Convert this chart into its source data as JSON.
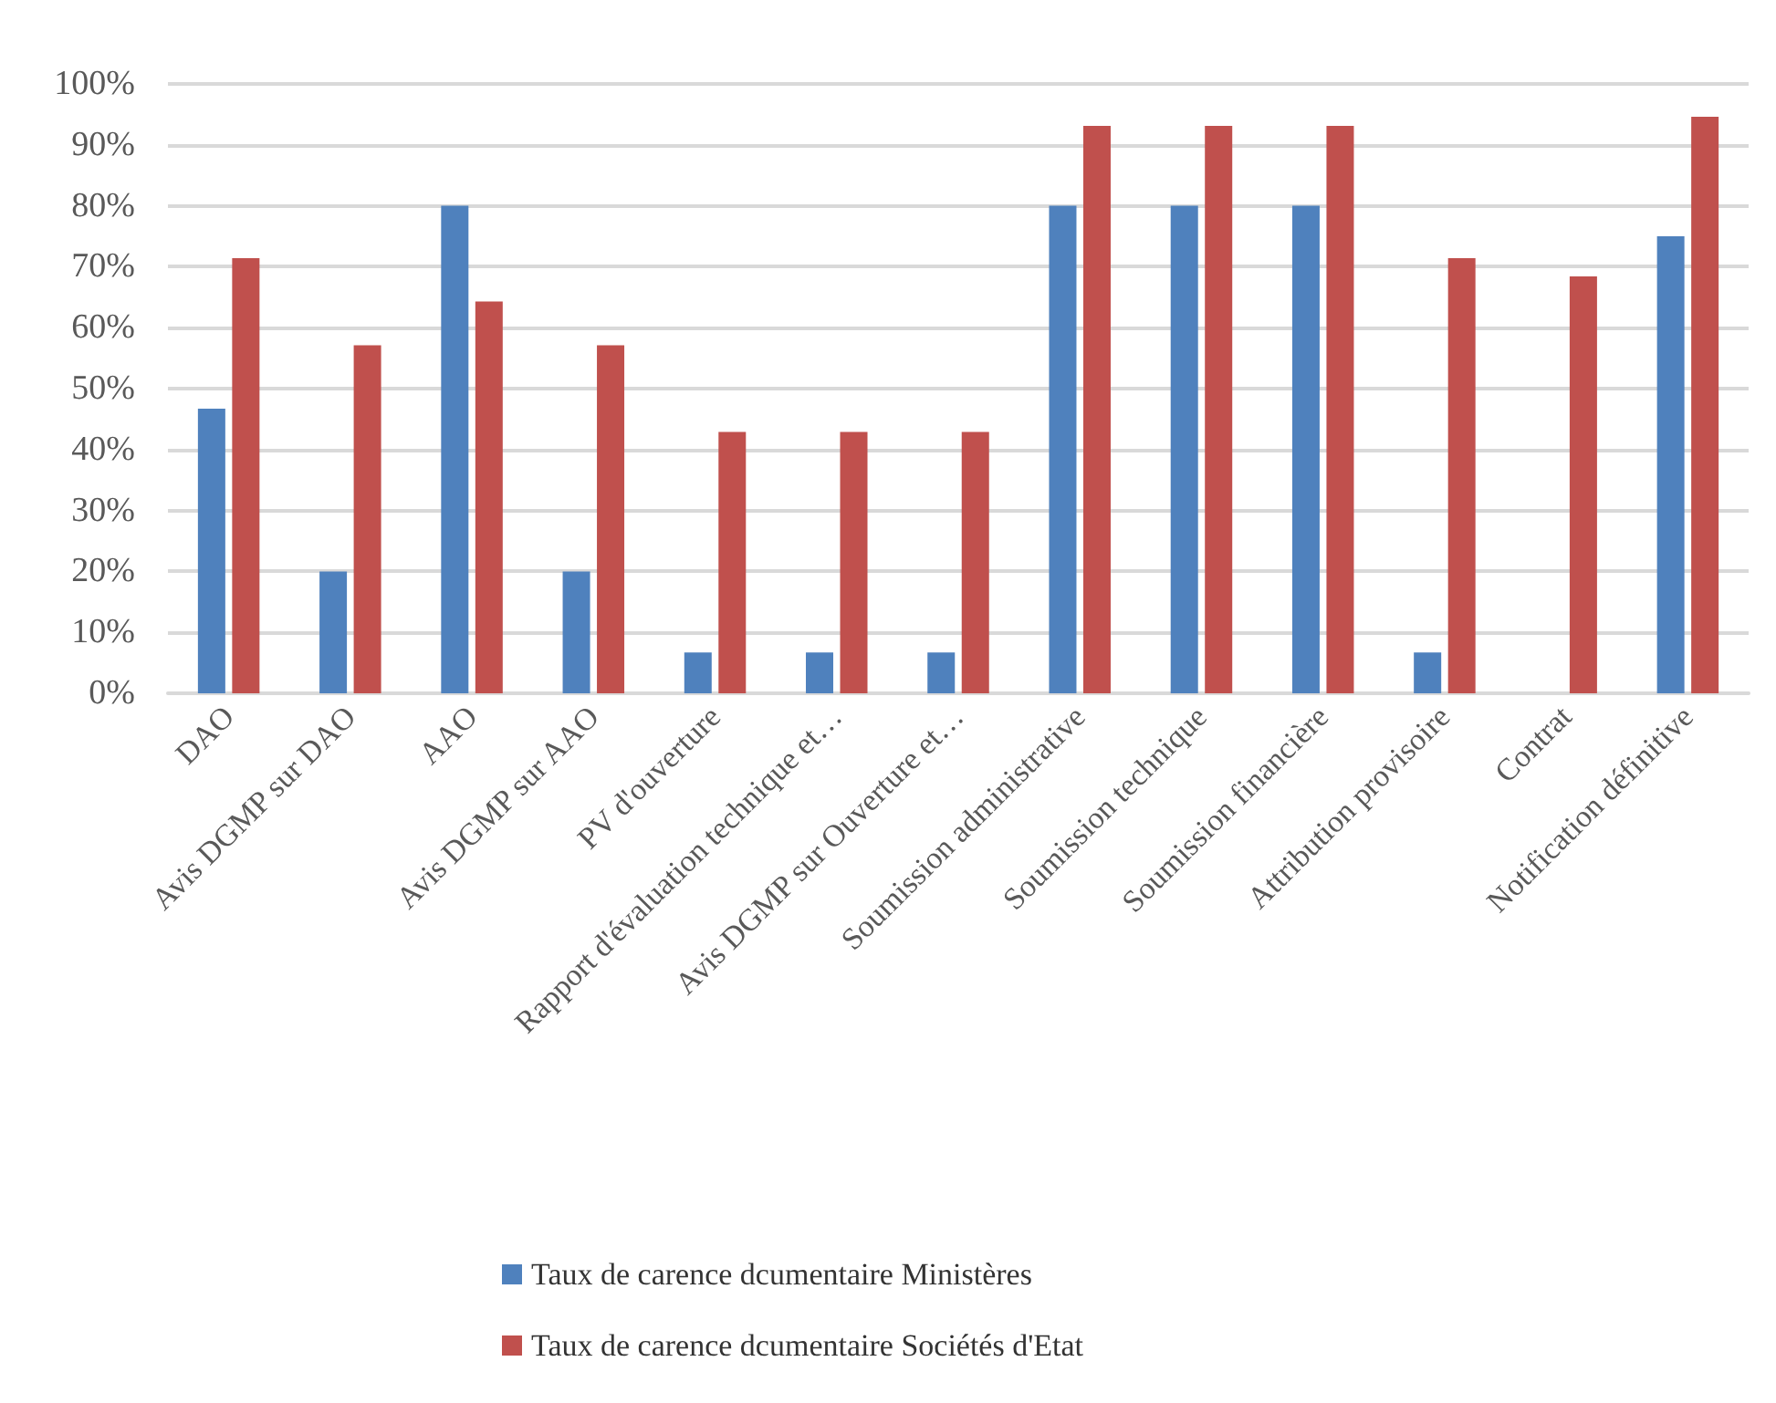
{
  "chart_data": {
    "type": "bar",
    "categories": [
      "DAO",
      "Avis DGMP sur DAO",
      "AAO",
      "Avis DGMP sur AAO",
      "PV d'ouverture",
      "Rapport d'évaluation technique et…",
      "Avis DGMP sur Ouverture et…",
      "Soumission administrative",
      "Soumission technique",
      "Soumission financière",
      "Attribution provisoire",
      "Contrat",
      "Notification définitive"
    ],
    "series": [
      {
        "name": "Taux de carence dcumentaire Ministères",
        "color": "#4f81bd",
        "values": [
          46.7,
          20,
          80,
          20,
          6.7,
          6.7,
          6.7,
          80,
          80,
          80,
          6.7,
          null,
          75
        ]
      },
      {
        "name": "Taux de carence dcumentaire Sociétés d'Etat",
        "color": "#c0504d",
        "values": [
          71.4,
          57.1,
          64.3,
          57.1,
          42.9,
          42.9,
          42.9,
          93.1,
          93.1,
          93.1,
          71.4,
          68.4,
          94.6
        ]
      }
    ],
    "ylim": [
      0,
      100
    ],
    "yticks": [
      {
        "value": 0,
        "label": "0%"
      },
      {
        "value": 10,
        "label": "10%"
      },
      {
        "value": 20,
        "label": "20%"
      },
      {
        "value": 30,
        "label": "30%"
      },
      {
        "value": 40,
        "label": "40%"
      },
      {
        "value": 50,
        "label": "50%"
      },
      {
        "value": 60,
        "label": "60%"
      },
      {
        "value": 70,
        "label": "70%"
      },
      {
        "value": 80,
        "label": "80%"
      },
      {
        "value": 90,
        "label": "90%"
      },
      {
        "value": 100,
        "label": "100%"
      }
    ],
    "grid": "y",
    "legend": "bottom"
  }
}
